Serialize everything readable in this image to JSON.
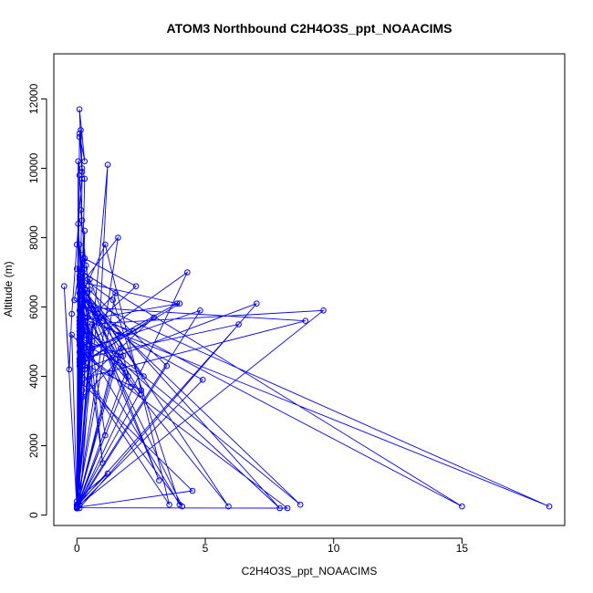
{
  "chart_data": {
    "type": "line",
    "title": "ATOM3 Northbound C2H4O3S_ppt_NOAACIMS",
    "xlabel": "C2H4O3S_ppt_NOAACIMS",
    "ylabel": "Altitude (m)",
    "xlim": [
      -0.9,
      19.0
    ],
    "ylim": [
      -300,
      13300
    ],
    "x_ticks": [
      0,
      5,
      10,
      15
    ],
    "y_ticks": [
      0,
      2000,
      4000,
      6000,
      8000,
      10000,
      12000
    ],
    "x_tick_labels": [
      "0",
      "5",
      "10",
      "15"
    ],
    "y_tick_labels": [
      "0",
      "2000",
      "4000",
      "6000",
      "8000",
      "10000",
      "12000"
    ],
    "marker": "open-circle",
    "grid": false,
    "legend": "none",
    "series_color": "#0000ff",
    "series": [
      {
        "x": [
          0.0,
          0.1,
          0.15,
          0.2,
          0.3,
          0.0,
          0.05,
          0.1,
          0.2,
          0.15,
          0.35,
          0.5,
          0.0,
          0.3,
          0.2,
          0.1,
          0.15,
          0.05,
          0.2,
          0.3,
          0.0,
          0.1,
          -0.1,
          0.5,
          1.0,
          0.7,
          1.5,
          0.0,
          0.2,
          0.1,
          0.4,
          0.1,
          0.0,
          -0.2,
          0.3,
          0.1,
          0.0,
          1.6,
          0.2,
          0.8,
          0.0,
          0.15,
          0.5,
          0.0,
          0.3,
          2.3,
          0.1,
          1.8,
          0.2,
          0.0,
          0.5,
          0.3,
          0.1,
          1.1,
          3.6,
          0.2,
          4.1,
          0.6,
          0.0,
          0.1,
          0.9,
          1.2,
          0.0,
          0.3,
          0.1,
          2.5,
          0.0,
          0.2,
          0.1,
          1.4,
          4.0,
          0.1,
          0.2,
          0.0,
          1.5,
          0.3,
          2.1,
          0.5,
          0.0,
          8.2,
          0.3,
          0.1,
          0.2,
          0.3,
          0.1,
          7.9,
          0.3,
          0.0,
          1.7,
          0.2,
          0.1,
          2.6,
          0.4,
          5.9,
          0.1,
          4.0,
          0.2,
          0.3,
          0.0,
          4.8,
          0.1,
          2.2,
          0.2,
          4.9,
          0.0,
          3.5,
          0.2,
          1.1,
          0.0,
          6.3,
          0.1,
          0.3,
          0.2,
          15.0,
          0.0,
          0.5,
          0.2,
          2.5,
          0.3,
          18.4,
          0.1,
          0.6,
          0.2,
          0.0,
          1.9,
          0.3,
          9.6,
          0.1,
          0.2,
          8.9,
          0.5,
          0.1,
          7.0,
          0.2,
          0.3,
          3.9,
          0.2,
          0.1,
          0.3,
          4.3,
          0.0,
          2.0,
          1.6,
          0.2,
          3.2,
          0.1,
          0.4,
          1.0,
          0.3,
          8.7,
          0.1,
          0.2,
          1.3,
          0.0,
          4.5,
          0.2,
          3.0,
          0.1,
          0.3,
          0.0,
          -0.5,
          -0.3,
          -0.2,
          0.0,
          0.2,
          0.1,
          0.3,
          0.1,
          0.2,
          0.0,
          1.2,
          0.1
        ],
        "y": [
          250,
          10900,
          11100,
          10000,
          9700,
          200,
          10200,
          9800,
          8500,
          8800,
          7200,
          6500,
          300,
          8200,
          7000,
          7800,
          6800,
          8400,
          6300,
          7400,
          200,
          7100,
          6200,
          5900,
          5600,
          5800,
          6400,
          250,
          6000,
          5500,
          5700,
          5300,
          400,
          5200,
          4800,
          5400,
          200,
          8000,
          6700,
          5800,
          250,
          6100,
          5000,
          200,
          7400,
          6600,
          5100,
          4600,
          3400,
          200,
          4700,
          4300,
          6200,
          7800,
          300,
          4100,
          250,
          5500,
          200,
          4900,
          5700,
          10100,
          220,
          4200,
          4400,
          3600,
          260,
          3900,
          6900,
          6200,
          300,
          5200,
          3600,
          200,
          4500,
          6500,
          3700,
          6800,
          210,
          200,
          4600,
          5900,
          7500,
          4200,
          6600,
          200,
          5400,
          230,
          4800,
          6300,
          5000,
          4000,
          6400,
          250,
          5600,
          6100,
          4400,
          7100,
          250,
          5900,
          4700,
          5300,
          5800,
          3900,
          200,
          4300,
          6700,
          2300,
          250,
          5500,
          4500,
          6900,
          6000,
          250,
          7100,
          4900,
          5600,
          3500,
          6200,
          250,
          5700,
          4800,
          6600,
          220,
          4100,
          5500,
          5900,
          300,
          6000,
          5600,
          4000,
          200,
          6100,
          4200,
          6700,
          6100,
          4600,
          5300,
          4900,
          7000,
          200,
          4000,
          5200,
          6300,
          1000,
          6800,
          5700,
          1500,
          5400,
          300,
          6400,
          4700,
          4100,
          220,
          700,
          3800,
          5700,
          4300,
          6500,
          200,
          6600,
          4200,
          5800,
          7800,
          9900,
          11000,
          10200,
          11700,
          9700,
          300,
          1200,
          500
        ]
      }
    ]
  }
}
